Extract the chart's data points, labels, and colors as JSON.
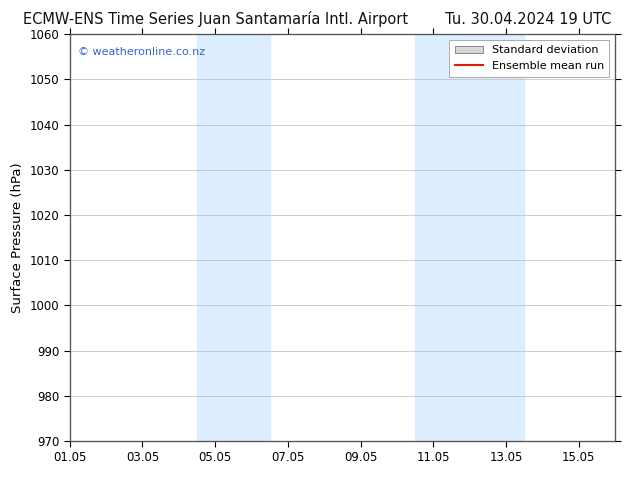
{
  "title_left": "ECMW-ENS Time Series Juan Santamaría Intl. Airport",
  "title_right": "Tu. 30.04.2024 19 UTC",
  "ylabel": "Surface Pressure (hPa)",
  "ylim": [
    970,
    1060
  ],
  "yticks": [
    970,
    980,
    990,
    1000,
    1010,
    1020,
    1030,
    1040,
    1050,
    1060
  ],
  "xtick_labels": [
    "01.05",
    "03.05",
    "05.05",
    "07.05",
    "09.05",
    "11.05",
    "13.05",
    "15.05"
  ],
  "xtick_positions": [
    0,
    2,
    4,
    6,
    8,
    10,
    12,
    14
  ],
  "xlim": [
    0,
    15
  ],
  "shaded_regions": [
    {
      "x_start": 3.5,
      "x_end": 5.5,
      "color": "#dceeff"
    },
    {
      "x_start": 9.5,
      "x_end": 12.5,
      "color": "#dceeff"
    }
  ],
  "background_color": "#ffffff",
  "plot_bg_color": "#ffffff",
  "grid_color": "#bbbbbb",
  "watermark_text": "© weatheronline.co.nz",
  "watermark_color": "#3366cc",
  "legend_std_dev_facecolor": "#d8d8d8",
  "legend_std_dev_edgecolor": "#888888",
  "legend_mean_color": "#dd2200",
  "title_fontsize": 10.5,
  "tick_fontsize": 8.5,
  "ylabel_fontsize": 9.5,
  "watermark_fontsize": 8,
  "legend_fontsize": 8
}
